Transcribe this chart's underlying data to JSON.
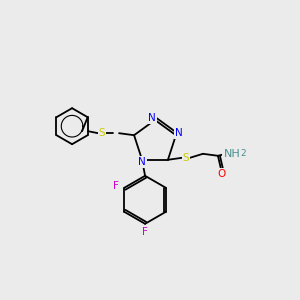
{
  "background_color": "#ebebeb",
  "bond_color": "#000000",
  "colors": {
    "N": "#0000ff",
    "S": "#cccc00",
    "O": "#ff0000",
    "F": "#cc00cc",
    "C": "#000000",
    "H": "#4a9090"
  },
  "font_size": 7.5,
  "bond_width": 1.3
}
